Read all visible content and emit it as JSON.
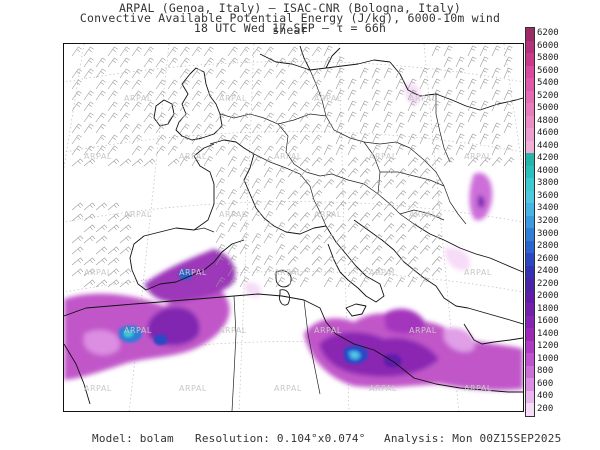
{
  "title": {
    "line1": "ARPAL (Genoa, Italy)  –  ISAC-CNR (Bologna, Italy)",
    "line2": "Convective Available Potential Energy (J/kg), 6000-10m wind shear",
    "line3": "18 UTC Wed 17 SEP  –  τ = 66h"
  },
  "colorbar": {
    "labels": [
      "6200",
      "6000",
      "5800",
      "5600",
      "5400",
      "5200",
      "5000",
      "4800",
      "4600",
      "4400",
      "4200",
      "4000",
      "3800",
      "3600",
      "3400",
      "3200",
      "3000",
      "2800",
      "2600",
      "2400",
      "2200",
      "2000",
      "1800",
      "1600",
      "1400",
      "1200",
      "1000",
      "800",
      "600",
      "400",
      "200"
    ],
    "colors": [
      "#9b2c66",
      "#b3327a",
      "#c93a8d",
      "#d94aa0",
      "#e05aab",
      "#e46bb4",
      "#e87cbc",
      "#ec8dc6",
      "#ee9ed0",
      "#f0b0d8",
      "#27b5a9",
      "#2bc0bb",
      "#3ecad0",
      "#4fc9df",
      "#48b4e3",
      "#3c9ae0",
      "#2f7fd8",
      "#2b64cf",
      "#2b48c2",
      "#3331b4",
      "#4a23a6",
      "#5f1ea8",
      "#7220ad",
      "#8624b3",
      "#9b2ab9",
      "#b03ac4",
      "#c052d0",
      "#cd6ed9",
      "#dc8ee3",
      "#e9b6ee",
      "#f6dcf6"
    ]
  },
  "watermark": "ARPAL",
  "footer": {
    "model": "Model: bolam",
    "resolution": "Resolution: 0.104°x0.074°",
    "analysis": "Analysis: Mon 00Z15SEP2025"
  }
}
